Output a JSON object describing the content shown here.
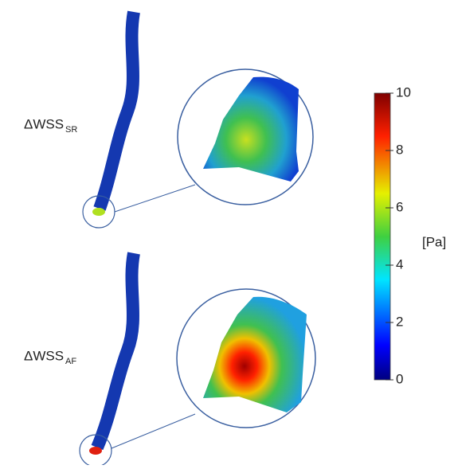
{
  "panels": [
    {
      "label": "ΔWSS",
      "subscript": "SR"
    },
    {
      "label": "ΔWSS",
      "subscript": "AF"
    }
  ],
  "colorbar": {
    "range": [
      0,
      10
    ],
    "ticks": [
      0,
      2,
      4,
      6,
      8,
      10
    ],
    "unit": "[Pa]"
  }
}
